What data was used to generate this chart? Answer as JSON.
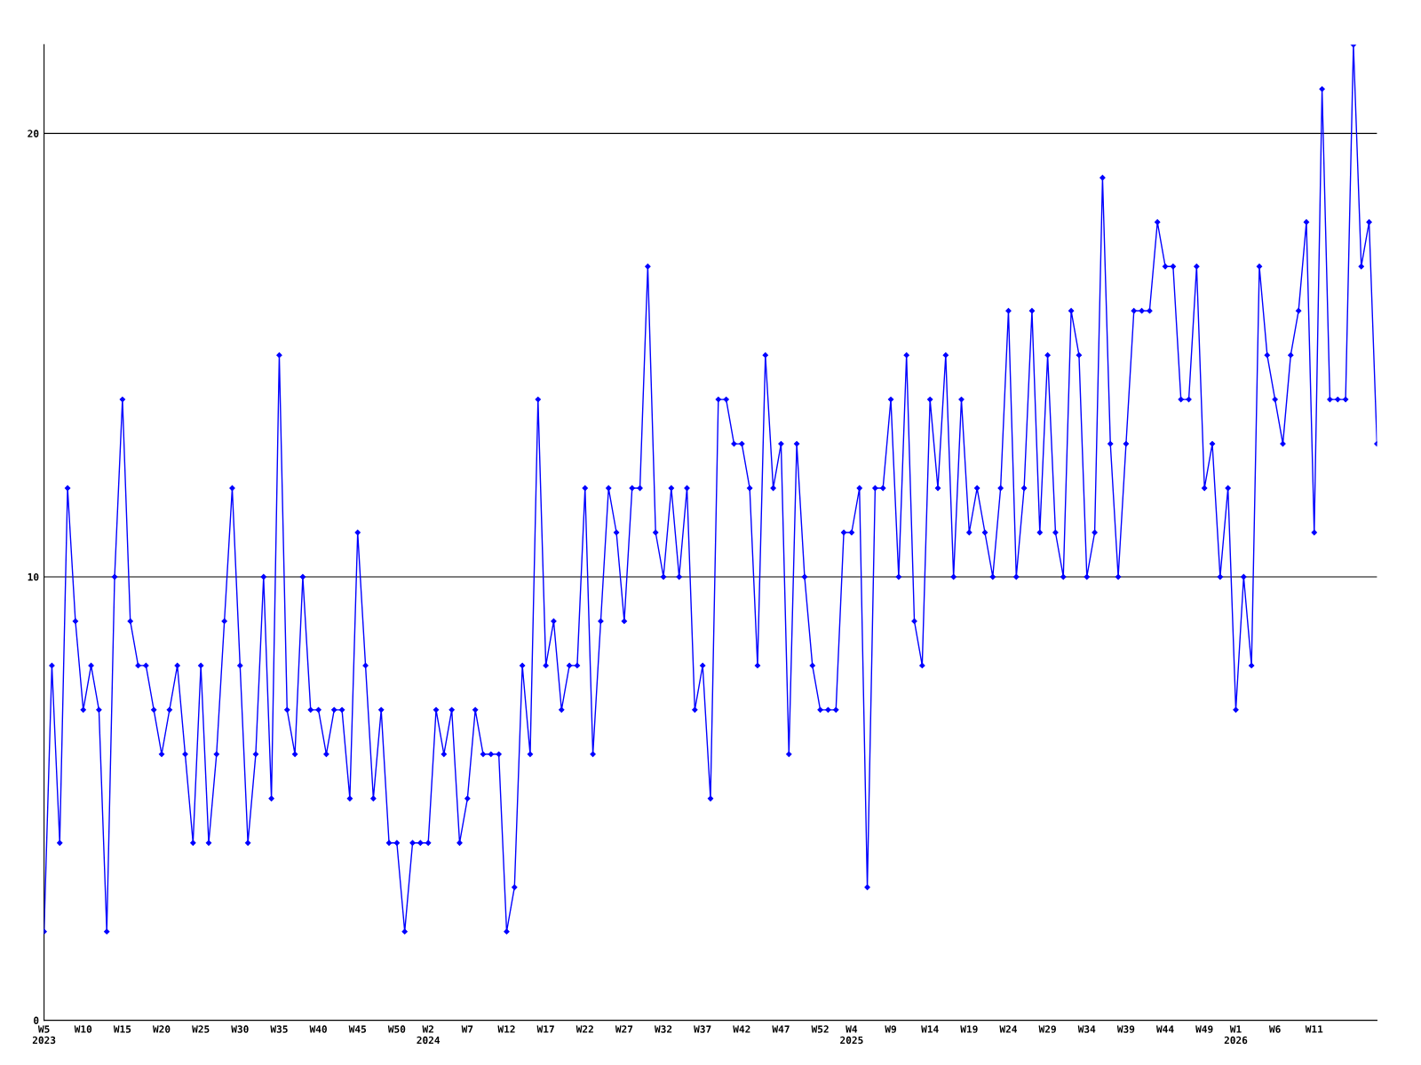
{
  "chart_data": {
    "type": "line",
    "categories": [
      "W5\n2023",
      null,
      null,
      null,
      null,
      "W10",
      null,
      null,
      null,
      null,
      "W15",
      null,
      null,
      null,
      null,
      "W20",
      null,
      null,
      null,
      null,
      "W25",
      null,
      null,
      null,
      null,
      "W30",
      null,
      null,
      null,
      null,
      "W35",
      null,
      null,
      null,
      null,
      "W40",
      null,
      null,
      null,
      null,
      "W45",
      null,
      null,
      null,
      null,
      "W50",
      null,
      null,
      null,
      "W2\n2024",
      null,
      null,
      null,
      null,
      "W7",
      null,
      null,
      null,
      null,
      "W12",
      null,
      null,
      null,
      null,
      "W17",
      null,
      null,
      null,
      null,
      "W22",
      null,
      null,
      null,
      null,
      "W27",
      null,
      null,
      null,
      null,
      "W32",
      null,
      null,
      null,
      null,
      "W37",
      null,
      null,
      null,
      null,
      "W42",
      null,
      null,
      null,
      null,
      "W47",
      null,
      null,
      null,
      null,
      "W52",
      null,
      null,
      null,
      "W4\n2025",
      null,
      null,
      null,
      null,
      "W9",
      null,
      null,
      null,
      null,
      "W14",
      null,
      null,
      null,
      null,
      "W19",
      null,
      null,
      null,
      null,
      "W24",
      null,
      null,
      null,
      null,
      "W29",
      null,
      null,
      null,
      null,
      "W34",
      null,
      null,
      null,
      null,
      "W39",
      null,
      null,
      null,
      null,
      "W44",
      null,
      null,
      null,
      null,
      "W49",
      null,
      null,
      null,
      "W1\n2026",
      null,
      null,
      null,
      null,
      "W6",
      null,
      null,
      null,
      null,
      "W11",
      null,
      null,
      null,
      null,
      null,
      null,
      null,
      null
    ],
    "series": [
      {
        "color": "#0000ff",
        "values": [
          2,
          8,
          4,
          12,
          9,
          7,
          8,
          7,
          2,
          10,
          14,
          9,
          8,
          8,
          7,
          6,
          7,
          8,
          6,
          4,
          8,
          4,
          6,
          9,
          12,
          8,
          4,
          6,
          10,
          5,
          15,
          7,
          6,
          10,
          7,
          7,
          6,
          7,
          7,
          5,
          11,
          8,
          5,
          7,
          4,
          4,
          2,
          4,
          4,
          4,
          7,
          6,
          7,
          4,
          5,
          7,
          6,
          6,
          6,
          2,
          3,
          8,
          6,
          14,
          8,
          9,
          7,
          8,
          8,
          12,
          6,
          9,
          12,
          11,
          9,
          12,
          12,
          17,
          11,
          10,
          12,
          10,
          12,
          7,
          8,
          5,
          14,
          14,
          13,
          13,
          12,
          8,
          15,
          12,
          13,
          6,
          13,
          10,
          8,
          7,
          7,
          7,
          11,
          11,
          12,
          3,
          12,
          12,
          14,
          10,
          15,
          9,
          8,
          14,
          12,
          15,
          10,
          14,
          11,
          12,
          11,
          10,
          12,
          16,
          10,
          12,
          16,
          11,
          15,
          11,
          10,
          16,
          15,
          10,
          11,
          19,
          13,
          10,
          13,
          16,
          16,
          16,
          18,
          17,
          17,
          14,
          14,
          17,
          12,
          13,
          10,
          12,
          7,
          10,
          8,
          17,
          15,
          14,
          13,
          15,
          16,
          18,
          11,
          21,
          14,
          14,
          14,
          22,
          17,
          18,
          13
        ]
      }
    ],
    "ylim": [
      0,
      22
    ],
    "yticks": [
      0,
      10,
      20
    ],
    "grid": "y",
    "marker": "diamond",
    "line_style": "solid"
  }
}
